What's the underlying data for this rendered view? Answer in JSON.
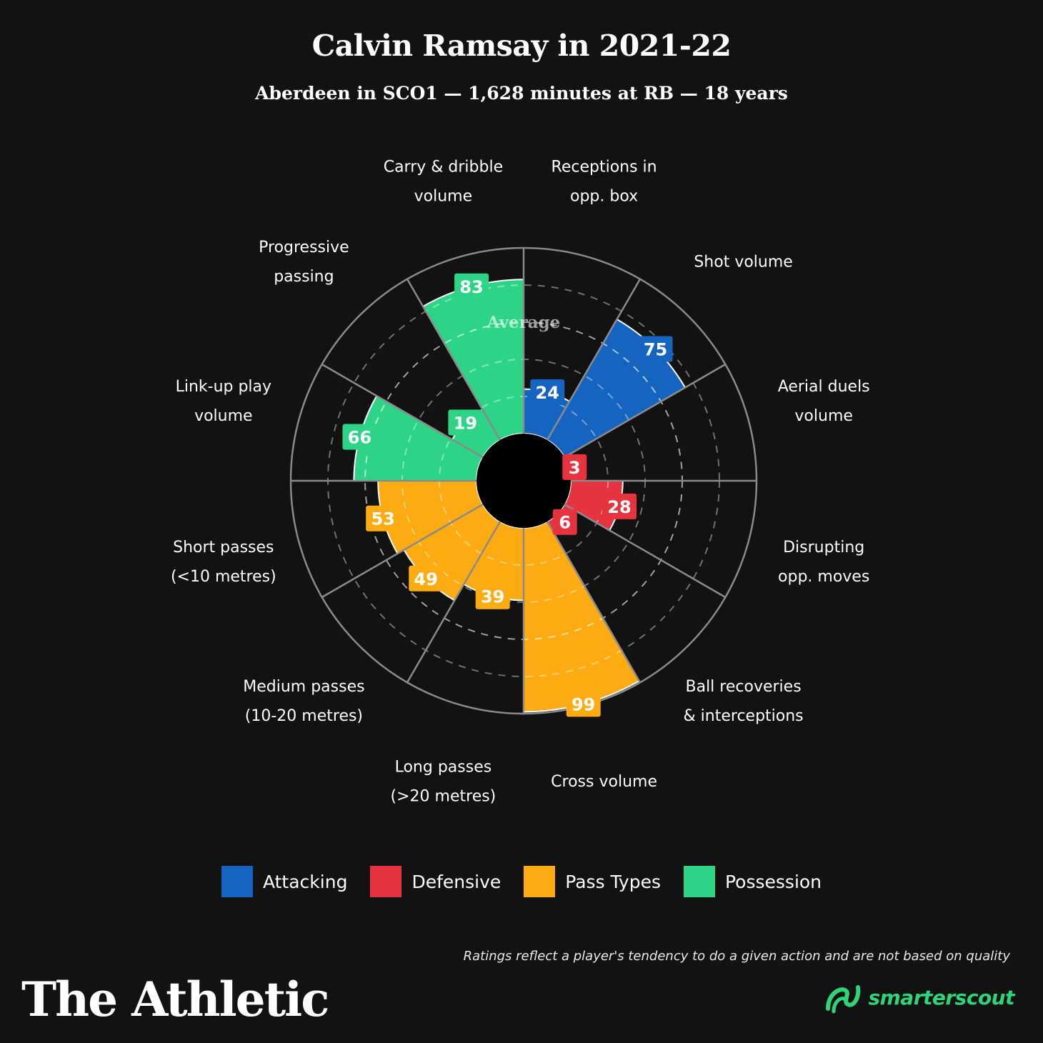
{
  "header": {
    "title": "Calvin Ramsay in 2021-22",
    "subtitle": "Aberdeen in SCO1 — 1,628 minutes at RB — 18 years"
  },
  "chart_data": {
    "type": "polar-bar",
    "range": [
      0,
      100
    ],
    "reference_label": "Average",
    "categories": [
      {
        "label": [
          "Receptions in",
          "opp. box"
        ],
        "value": 24,
        "group": "Attacking"
      },
      {
        "label": [
          "Shot volume"
        ],
        "value": 75,
        "group": "Attacking"
      },
      {
        "label": [
          "Aerial duels",
          "volume"
        ],
        "value": 3,
        "group": "Defensive"
      },
      {
        "label": [
          "Disrupting",
          "opp. moves"
        ],
        "value": 28,
        "group": "Defensive"
      },
      {
        "label": [
          "Ball recoveries",
          "& interceptions"
        ],
        "value": 6,
        "group": "Defensive"
      },
      {
        "label": [
          "Cross volume"
        ],
        "value": 99,
        "group": "Pass Types"
      },
      {
        "label": [
          "Long passes",
          "(>20 metres)"
        ],
        "value": 39,
        "group": "Pass Types"
      },
      {
        "label": [
          "Medium passes",
          "(10-20 metres)"
        ],
        "value": 49,
        "group": "Pass Types"
      },
      {
        "label": [
          "Short passes",
          "(<10 metres)"
        ],
        "value": 53,
        "group": "Pass Types"
      },
      {
        "label": [
          "Link-up play",
          "volume"
        ],
        "value": 66,
        "group": "Possession"
      },
      {
        "label": [
          "Progressive",
          "passing"
        ],
        "value": 19,
        "group": "Possession"
      },
      {
        "label": [
          "Carry & dribble",
          "volume"
        ],
        "value": 83,
        "group": "Possession"
      }
    ],
    "legend": [
      {
        "name": "Attacking",
        "color": "#1565c0"
      },
      {
        "name": "Defensive",
        "color": "#e53340"
      },
      {
        "name": "Pass Types",
        "color": "#fdab13"
      },
      {
        "name": "Possession",
        "color": "#2ed486"
      }
    ]
  },
  "footer": {
    "note": "Ratings reflect a player's tendency to do a given action and are not based on quality",
    "publisher": "The Athletic",
    "partner": "smarterscout",
    "partner_icon": "smarterscout-logo-icon"
  }
}
